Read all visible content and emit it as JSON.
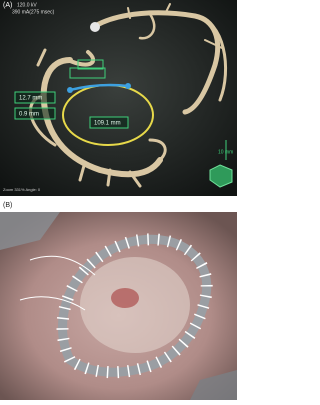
{
  "panel_a": {
    "label": "(A)",
    "scan_info": [
      "120.0 kV",
      "390 mA(275 msec)"
    ],
    "measurements": [
      "12.7 mm",
      "0.9 mm",
      "109.1 mm"
    ],
    "scale": "10 mm",
    "footer": "Zoom 331% Angle: 0"
  },
  "panel_b": {
    "label": "(B)"
  }
}
